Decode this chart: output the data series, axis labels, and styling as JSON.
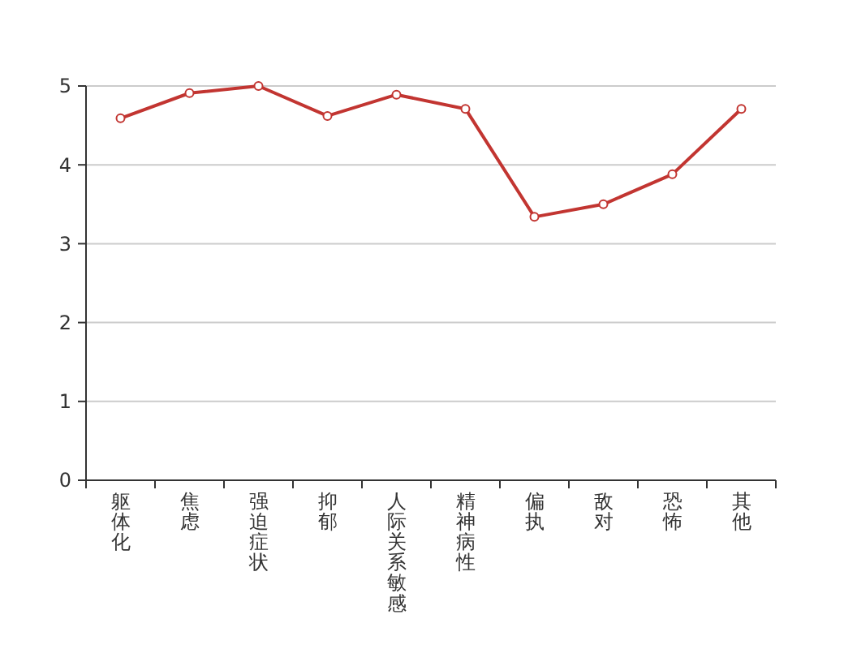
{
  "chart_data": {
    "type": "line",
    "categories": [
      "躯体化",
      "焦虑",
      "强迫症状",
      "抑郁",
      "人际关系敏感",
      "精神病性",
      "偏执",
      "敌对",
      "恐怖",
      "其他"
    ],
    "series": [
      {
        "color": "#c23531",
        "values": [
          4.59,
          4.91,
          5.0,
          4.62,
          4.89,
          4.71,
          3.34,
          3.5,
          3.88,
          4.71
        ]
      }
    ],
    "ylim": [
      0,
      5
    ],
    "yticks": [
      0,
      1,
      2,
      3,
      4,
      5
    ],
    "grid": "y",
    "marker": "circle",
    "line_style": "solid"
  }
}
